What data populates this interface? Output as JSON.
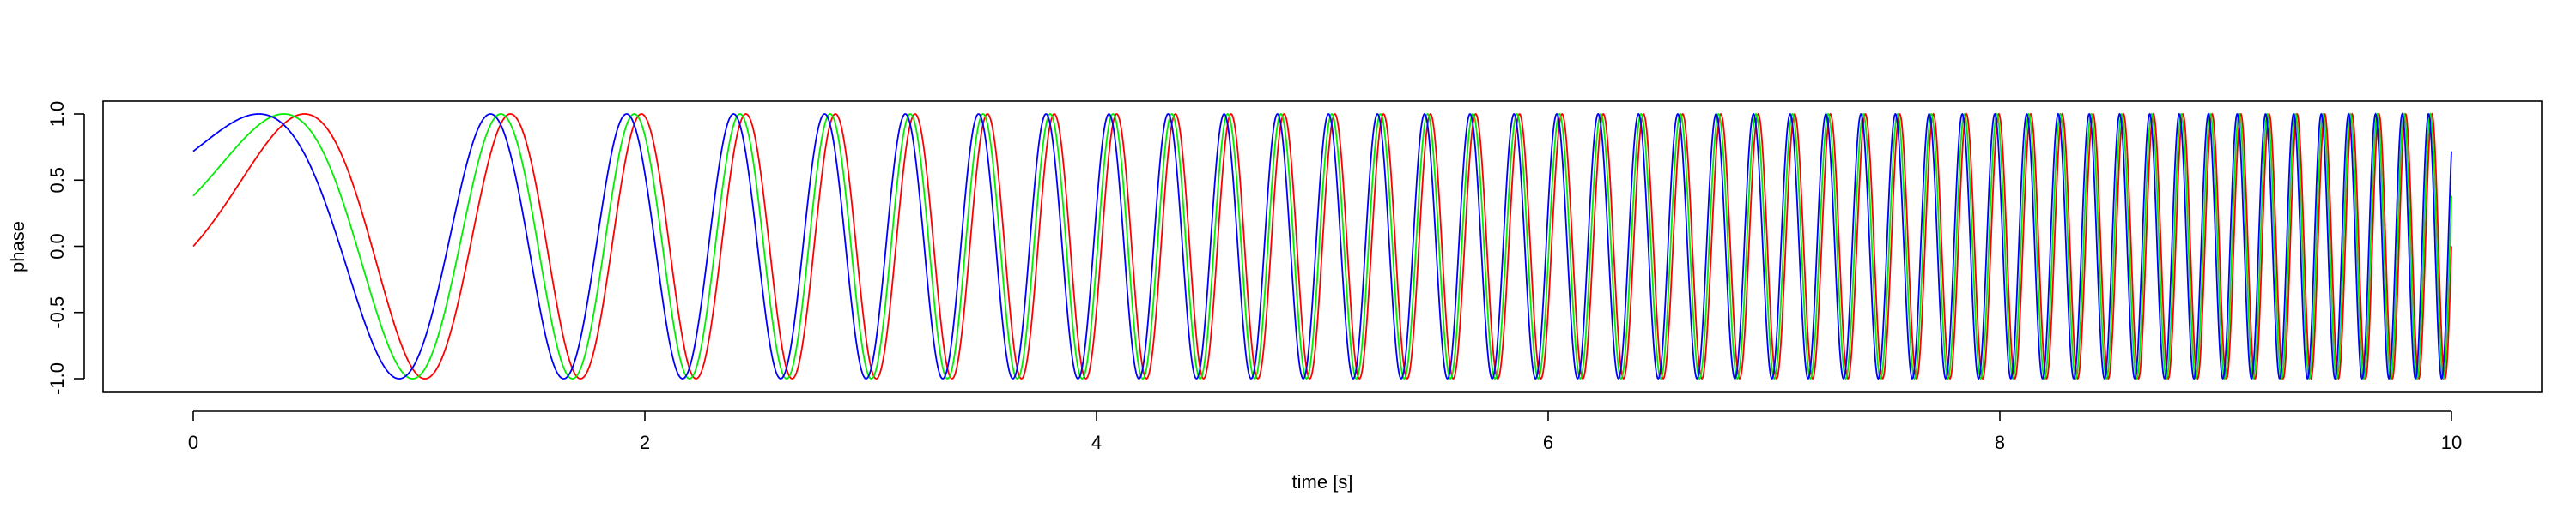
{
  "chart_data": {
    "type": "line",
    "title": "",
    "xlabel": "time [s]",
    "ylabel": "phase",
    "xlim": [
      0,
      10
    ],
    "ylim": [
      -1,
      1
    ],
    "x_ticks": [
      "0",
      "2",
      "4",
      "6",
      "8",
      "10"
    ],
    "y_ticks": [
      "-1.0",
      "-0.5",
      "0.0",
      "0.5",
      "1.0"
    ],
    "grid": false,
    "legend": "none",
    "x_domain": [
      0,
      10
    ],
    "sample_step": 0.002,
    "phase_function": "2*pi*(0.3*t + 0.42*t^2) + offset",
    "series": [
      {
        "color": "#ff0000",
        "y_at_t0": 0.0,
        "phase_offset_rad": 0.0
      },
      {
        "color": "#00ee00",
        "y_at_t0": 0.38,
        "phase_offset_rad": 0.39
      },
      {
        "color": "#0000ff",
        "y_at_t0": 0.72,
        "phase_offset_rad": 0.8
      }
    ]
  }
}
